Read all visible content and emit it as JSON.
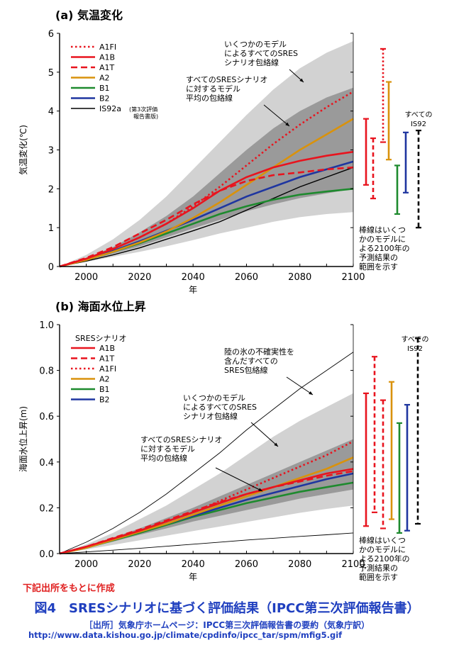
{
  "footer": {
    "note": "下記出所をもとに作成",
    "title": "図4　SRESシナリオに基づく評価結果（IPCC第三次評価報告書）",
    "source": "［出所］気象庁ホームページ：IPCC第三次評価報告書の要約（気象庁訳）",
    "url": "http://www.data.kishou.go.jp/climate/cpdinfo/ipcc_tar/spm/mfig5.gif"
  },
  "colors": {
    "A1FI": "#e8141e",
    "A1B": "#e8141e",
    "A1T": "#e8141e",
    "A2": "#d9920c",
    "B1": "#1e8a2e",
    "B2": "#1f36a0",
    "IS92": "#000000",
    "band_outer": "#d2d2d2",
    "band_inner": "#9a9a9a"
  },
  "chart_data": [
    {
      "type": "line",
      "title": "(a) 気温変化",
      "xlabel": "年",
      "ylabel": "気温変化(℃)",
      "xlim": [
        1990,
        2100
      ],
      "ylim": [
        0,
        6
      ],
      "xticks": [
        2000,
        2020,
        2040,
        2060,
        2080,
        2100
      ],
      "yticks": [
        0,
        1,
        2,
        3,
        4,
        5,
        6
      ],
      "legend": [
        {
          "name": "A1FI",
          "dash": "dot"
        },
        {
          "name": "A1B",
          "dash": "solid"
        },
        {
          "name": "A1T",
          "dash": "dash"
        },
        {
          "name": "A2",
          "dash": "solid"
        },
        {
          "name": "B1",
          "dash": "solid"
        },
        {
          "name": "B2",
          "dash": "solid"
        },
        {
          "name": "IS92",
          "dash": "solid",
          "label": "IS92a",
          "note1": "(第3次評価",
          "note2": "報告書版)"
        }
      ],
      "x": [
        1990,
        2000,
        2010,
        2020,
        2030,
        2040,
        2050,
        2060,
        2070,
        2080,
        2090,
        2100
      ],
      "series": [
        {
          "name": "A1FI",
          "values": [
            0,
            0.2,
            0.45,
            0.75,
            1.1,
            1.55,
            2.05,
            2.6,
            3.15,
            3.65,
            4.1,
            4.5
          ]
        },
        {
          "name": "A1B",
          "values": [
            0,
            0.2,
            0.45,
            0.75,
            1.1,
            1.5,
            1.95,
            2.3,
            2.55,
            2.72,
            2.85,
            2.95
          ]
        },
        {
          "name": "A1T",
          "values": [
            0,
            0.22,
            0.5,
            0.85,
            1.2,
            1.6,
            1.95,
            2.2,
            2.35,
            2.42,
            2.5,
            2.55
          ]
        },
        {
          "name": "A2",
          "values": [
            0,
            0.17,
            0.38,
            0.62,
            0.9,
            1.25,
            1.65,
            2.1,
            2.55,
            3.0,
            3.4,
            3.8
          ]
        },
        {
          "name": "B1",
          "values": [
            0,
            0.17,
            0.38,
            0.6,
            0.85,
            1.1,
            1.35,
            1.55,
            1.72,
            1.85,
            1.93,
            2.0
          ]
        },
        {
          "name": "B2",
          "values": [
            0,
            0.18,
            0.4,
            0.65,
            0.92,
            1.2,
            1.5,
            1.8,
            2.05,
            2.3,
            2.5,
            2.7
          ]
        },
        {
          "name": "IS92",
          "values": [
            0,
            0.14,
            0.3,
            0.48,
            0.7,
            0.92,
            1.15,
            1.45,
            1.75,
            2.05,
            2.3,
            2.55
          ]
        }
      ],
      "envelopes": [
        {
          "name": "すべてのモデルによるSRES包絡線",
          "lower": [
            0,
            0.12,
            0.25,
            0.38,
            0.52,
            0.68,
            0.85,
            1.0,
            1.15,
            1.27,
            1.35,
            1.4
          ],
          "upper": [
            0,
            0.3,
            0.7,
            1.2,
            1.8,
            2.5,
            3.2,
            3.9,
            4.55,
            5.1,
            5.5,
            5.8
          ]
        },
        {
          "name": "すべてのSRESシナリオに対するモデル平均の包絡線",
          "lower": [
            0,
            0.15,
            0.33,
            0.52,
            0.75,
            0.98,
            1.2,
            1.42,
            1.6,
            1.76,
            1.88,
            2.0
          ],
          "upper": [
            0,
            0.22,
            0.5,
            0.88,
            1.3,
            1.8,
            2.4,
            3.0,
            3.55,
            4.0,
            4.35,
            4.6
          ]
        }
      ],
      "annotations": {
        "model_env": [
          "いくつかのモデル",
          "によるすべてのSRES",
          "シナリオ包絡線"
        ],
        "mean_env": [
          "すべてのSRESシナリオ",
          "に対するモデル",
          "平均の包絡線"
        ],
        "all_is92": [
          "すべての",
          "IS92"
        ],
        "bars_note": [
          "棒線はいくつ",
          "かのモデルに",
          "よる2100年の",
          "予測結果の",
          "範囲を示す"
        ]
      },
      "range_bars": [
        {
          "name": "A1B",
          "dash": "solid",
          "low": 2.1,
          "high": 3.8
        },
        {
          "name": "A1T",
          "dash": "dash",
          "low": 1.75,
          "high": 3.3
        },
        {
          "name": "A1FI",
          "dash": "dot",
          "low": 3.2,
          "high": 5.6
        },
        {
          "name": "A2",
          "dash": "solid",
          "low": 2.75,
          "high": 4.75
        },
        {
          "name": "B1",
          "dash": "solid",
          "low": 1.35,
          "high": 2.6
        },
        {
          "name": "B2",
          "dash": "solid",
          "low": 1.9,
          "high": 3.45
        },
        {
          "name": "IS92",
          "dash": "dash",
          "low": 1.0,
          "high": 3.5
        }
      ]
    },
    {
      "type": "line",
      "title": "(b) 海面水位上昇",
      "xlabel": "年",
      "ylabel": "海面水位上昇(m)",
      "xlim": [
        1990,
        2100
      ],
      "ylim": [
        0,
        1.0
      ],
      "xticks": [
        2000,
        2020,
        2040,
        2060,
        2080,
        2100
      ],
      "yticks": [
        0.0,
        0.2,
        0.4,
        0.6,
        0.8,
        1.0
      ],
      "legend_title": "SRESシナリオ",
      "legend": [
        {
          "name": "A1B",
          "dash": "solid"
        },
        {
          "name": "A1T",
          "dash": "dash"
        },
        {
          "name": "A1FI",
          "dash": "dot"
        },
        {
          "name": "A2",
          "dash": "solid"
        },
        {
          "name": "B1",
          "dash": "solid"
        },
        {
          "name": "B2",
          "dash": "solid"
        }
      ],
      "x": [
        1990,
        2000,
        2010,
        2020,
        2030,
        2040,
        2050,
        2060,
        2070,
        2080,
        2090,
        2100
      ],
      "series": [
        {
          "name": "A1FI",
          "values": [
            0,
            0.03,
            0.065,
            0.1,
            0.14,
            0.18,
            0.23,
            0.28,
            0.33,
            0.38,
            0.43,
            0.49
          ]
        },
        {
          "name": "A1B",
          "values": [
            0,
            0.03,
            0.065,
            0.1,
            0.14,
            0.18,
            0.22,
            0.26,
            0.29,
            0.32,
            0.35,
            0.37
          ]
        },
        {
          "name": "A1T",
          "values": [
            0,
            0.03,
            0.068,
            0.105,
            0.145,
            0.185,
            0.225,
            0.26,
            0.29,
            0.315,
            0.34,
            0.36
          ]
        },
        {
          "name": "A2",
          "values": [
            0,
            0.025,
            0.06,
            0.095,
            0.13,
            0.17,
            0.21,
            0.25,
            0.29,
            0.33,
            0.37,
            0.42
          ]
        },
        {
          "name": "B1",
          "values": [
            0,
            0.025,
            0.058,
            0.09,
            0.125,
            0.16,
            0.19,
            0.22,
            0.245,
            0.27,
            0.29,
            0.31
          ]
        },
        {
          "name": "B2",
          "values": [
            0,
            0.028,
            0.062,
            0.095,
            0.13,
            0.165,
            0.2,
            0.235,
            0.265,
            0.295,
            0.325,
            0.35
          ]
        }
      ],
      "reference_lines": [
        {
          "name": "陸の氷の不確実性を含んだすべてのSRES包絡線 上限",
          "values": [
            0,
            0.05,
            0.11,
            0.18,
            0.26,
            0.35,
            0.44,
            0.54,
            0.63,
            0.72,
            0.8,
            0.88
          ]
        },
        {
          "name": "陸の氷の不確実性を含んだすべてのSRES包絡線 下限",
          "values": [
            0,
            0.007,
            0.015,
            0.023,
            0.032,
            0.041,
            0.05,
            0.059,
            0.067,
            0.075,
            0.082,
            0.09
          ]
        }
      ],
      "envelopes": [
        {
          "name": "すべてのモデルによるSRES包絡線",
          "lower": [
            0,
            0.018,
            0.038,
            0.058,
            0.078,
            0.098,
            0.118,
            0.138,
            0.158,
            0.178,
            0.195,
            0.21
          ],
          "upper": [
            0,
            0.04,
            0.09,
            0.15,
            0.21,
            0.28,
            0.35,
            0.43,
            0.51,
            0.58,
            0.64,
            0.7
          ]
        },
        {
          "name": "すべてのSRESシナリオに対するモデル平均の包絡線",
          "lower": [
            0,
            0.024,
            0.052,
            0.082,
            0.11,
            0.14,
            0.165,
            0.19,
            0.215,
            0.24,
            0.26,
            0.28
          ],
          "upper": [
            0,
            0.032,
            0.07,
            0.11,
            0.155,
            0.2,
            0.25,
            0.3,
            0.35,
            0.4,
            0.45,
            0.5
          ]
        }
      ],
      "annotations": {
        "ice_env": [
          "陸の氷の不確実性を",
          "含んだすべての",
          "SRES包絡線"
        ],
        "model_env": [
          "いくつかのモデル",
          "によるすべてのSRES",
          "シナリオ包絡線"
        ],
        "mean_env": [
          "すべてのSRESシナリオ",
          "に対するモデル",
          "平均の包絡線"
        ],
        "all_is92": [
          "すべての",
          "IS92"
        ],
        "bars_note": [
          "棒線はいくつ",
          "かのモデルに",
          "よる2100年の",
          "予測結果の",
          "範囲を示す"
        ]
      },
      "range_bars": [
        {
          "name": "A1B",
          "dash": "solid",
          "low": 0.12,
          "high": 0.7
        },
        {
          "name": "A1T",
          "dash": "dash",
          "low": 0.18,
          "high": 0.86
        },
        {
          "name": "A1FI",
          "dash": "dash",
          "low": 0.11,
          "high": 0.67
        },
        {
          "name": "A2",
          "dash": "solid",
          "low": 0.15,
          "high": 0.75
        },
        {
          "name": "B1",
          "dash": "solid",
          "low": 0.09,
          "high": 0.57
        },
        {
          "name": "B2",
          "dash": "solid",
          "low": 0.1,
          "high": 0.65
        },
        {
          "name": "IS92",
          "dash": "dash",
          "low": 0.13,
          "high": 0.94
        }
      ]
    }
  ]
}
